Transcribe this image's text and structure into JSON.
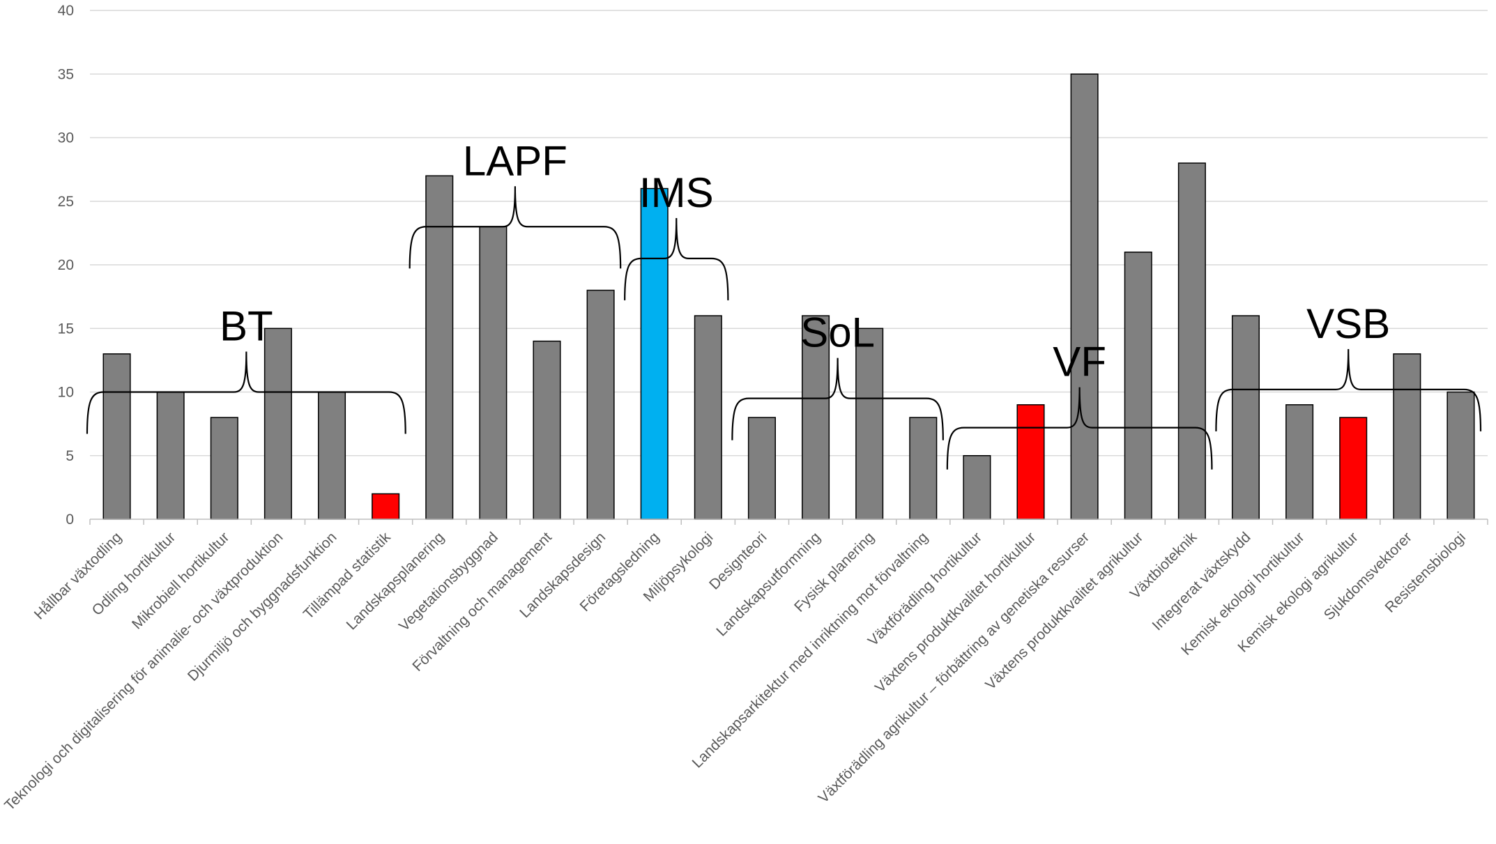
{
  "chart_data": {
    "type": "bar",
    "title": "",
    "xlabel": "",
    "ylabel": "",
    "ylim": [
      0,
      40
    ],
    "yticks": [
      "0",
      "5",
      "10",
      "15",
      "20",
      "25",
      "30",
      "35",
      "40"
    ],
    "grid": true,
    "legend": "none",
    "colors": {
      "default": "#808080",
      "highlight_red": "#ff0000",
      "highlight_blue": "#00b0f0"
    },
    "categories": [
      "Hållbar växtodling",
      "Odling hortikultur",
      "Mikrobiell hortikultur",
      "Teknologi och digitalisering för animalie- och växtproduktion",
      "Djurmiljö och byggnadsfunktion",
      "Tillämpad statistik",
      "Landskapsplanering",
      "Vegetationsbyggnad",
      "Förvaltning och management",
      "Landskapsdesign",
      "Företagsledning",
      "Miljöpsykologi",
      "Designteori",
      "Landskapsutformning",
      "Fysisk planering",
      "Landskapsarkitektur med inriktning mot förvaltning",
      "Växtförädling hortikultur",
      "Växtens produktkvalitet hortikultur",
      "Växtförädling agrikultur – förbättring av genetiska resurser",
      "Växtens produktkvalitet agrikultur",
      "Växtbioteknik",
      "Integrerat växtskydd",
      "Kemisk ekologi hortikultur",
      "Kemisk ekologi agrikultur",
      "Sjukdomsvektorer",
      "Resistensbiologi"
    ],
    "values": [
      13,
      10,
      8,
      15,
      10,
      2,
      27,
      23,
      14,
      18,
      26,
      16,
      8,
      16,
      15,
      8,
      5,
      9,
      35,
      21,
      28,
      16,
      9,
      8,
      13,
      10
    ],
    "bar_colors": [
      "#808080",
      "#808080",
      "#808080",
      "#808080",
      "#808080",
      "#ff0000",
      "#808080",
      "#808080",
      "#808080",
      "#808080",
      "#00b0f0",
      "#808080",
      "#808080",
      "#808080",
      "#808080",
      "#808080",
      "#808080",
      "#ff0000",
      "#808080",
      "#808080",
      "#808080",
      "#808080",
      "#808080",
      "#ff0000",
      "#808080",
      "#808080"
    ],
    "groups": [
      {
        "label": "BT",
        "first": 0,
        "last": 5,
        "level": 10
      },
      {
        "label": "LAPF",
        "first": 6,
        "last": 9,
        "level": 23
      },
      {
        "label": "IMS",
        "first": 10,
        "last": 11,
        "level": 20.5
      },
      {
        "label": "SoL",
        "first": 12,
        "last": 15,
        "level": 9.5
      },
      {
        "label": "VF",
        "first": 16,
        "last": 20,
        "level": 7.2
      },
      {
        "label": "VSB",
        "first": 21,
        "last": 25,
        "level": 10.2
      }
    ]
  }
}
